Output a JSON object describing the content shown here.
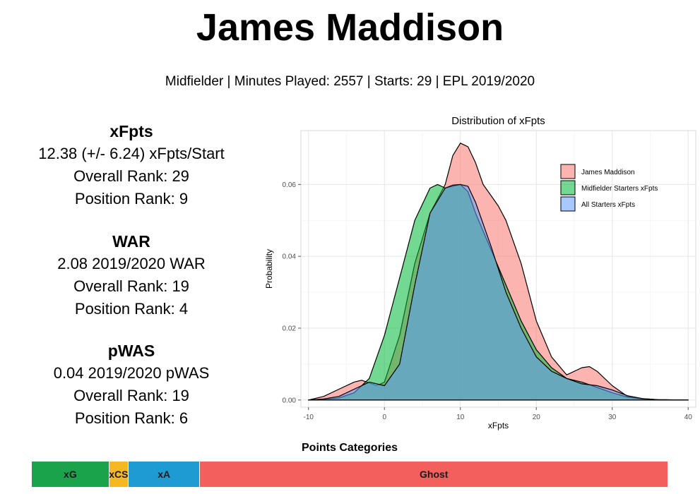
{
  "player": {
    "name": "James Maddison",
    "subtitle": "Midfielder | Minutes Played: 2557 | Starts: 29 | EPL 2019/2020"
  },
  "stats": [
    {
      "header": "xFpts",
      "lines": [
        "12.38 (+/- 6.24) xFpts/Start",
        "Overall Rank: 29",
        "Position Rank: 9"
      ]
    },
    {
      "header": "WAR",
      "lines": [
        "2.08 2019/2020 WAR",
        "Overall Rank: 19",
        "Position Rank: 4"
      ]
    },
    {
      "header": "pWAS",
      "lines": [
        "0.04 2019/2020 pWAS",
        "Overall Rank: 19",
        "Position Rank: 6"
      ]
    }
  ],
  "points_categories": {
    "title": "Points Categories",
    "segments": [
      {
        "label": "xG",
        "share": 0.122,
        "color": "#1aa34a"
      },
      {
        "label": "xCS",
        "share": 0.03,
        "color": "#f5b820"
      },
      {
        "label": "xA",
        "share": 0.113,
        "color": "#1f9bd3"
      },
      {
        "label": "Ghost",
        "share": 0.735,
        "color": "#f25f5c"
      }
    ]
  },
  "chart_data": {
    "type": "area",
    "title": "Distribution of xFpts",
    "xlabel": "xFpts",
    "ylabel": "Probability",
    "xlim": [
      -11,
      41
    ],
    "ylim": [
      -0.002,
      0.075
    ],
    "xticks": [
      -10,
      0,
      10,
      20,
      30,
      40
    ],
    "yticks": [
      0.0,
      0.02,
      0.04,
      0.06
    ],
    "ytick_labels": [
      "0.00",
      "0.02",
      "0.04",
      "0.06"
    ],
    "grid": true,
    "legend_position": "top-right",
    "series": [
      {
        "name": "James Maddison",
        "color": "#f8766d",
        "x": [
          -10,
          -8,
          -6,
          -4,
          -3,
          -1,
          0,
          2,
          4,
          6,
          8,
          9,
          10,
          11,
          12,
          13,
          14,
          15,
          16,
          18,
          20,
          22,
          24,
          26,
          27,
          28,
          30,
          32,
          34,
          36,
          40
        ],
        "y": [
          0.0,
          0.001,
          0.003,
          0.005,
          0.0055,
          0.004,
          0.005,
          0.018,
          0.038,
          0.052,
          0.06,
          0.068,
          0.0715,
          0.0705,
          0.066,
          0.06,
          0.057,
          0.054,
          0.05,
          0.038,
          0.022,
          0.012,
          0.007,
          0.009,
          0.0093,
          0.008,
          0.004,
          0.001,
          0.0004,
          0.0001,
          0.0
        ]
      },
      {
        "name": "Midfielder Starters xFpts",
        "color": "#00ba38",
        "x": [
          -10,
          -8,
          -6,
          -4,
          -2,
          0,
          1,
          2,
          4,
          6,
          7,
          8,
          9,
          10,
          11,
          12,
          14,
          16,
          18,
          20,
          22,
          24,
          26,
          28,
          30,
          32,
          34,
          36,
          40
        ],
        "y": [
          0.0,
          0.0002,
          0.0006,
          0.002,
          0.006,
          0.018,
          0.026,
          0.034,
          0.05,
          0.059,
          0.06,
          0.059,
          0.0595,
          0.06,
          0.058,
          0.052,
          0.042,
          0.032,
          0.022,
          0.014,
          0.009,
          0.006,
          0.005,
          0.0035,
          0.002,
          0.0008,
          0.0003,
          0.0001,
          0.0
        ]
      },
      {
        "name": "All Starters xFpts",
        "color": "#619cff",
        "x": [
          -10,
          -8,
          -6,
          -4,
          -2,
          0,
          2,
          4,
          6,
          8,
          9,
          10,
          11,
          12,
          14,
          16,
          18,
          20,
          22,
          24,
          26,
          28,
          30,
          32,
          34,
          36,
          40
        ],
        "y": [
          0.0,
          0.0003,
          0.001,
          0.003,
          0.005,
          0.004,
          0.01,
          0.032,
          0.052,
          0.059,
          0.0598,
          0.06,
          0.0595,
          0.055,
          0.043,
          0.03,
          0.02,
          0.012,
          0.008,
          0.006,
          0.0045,
          0.004,
          0.0028,
          0.0012,
          0.0004,
          0.0001,
          0.0
        ]
      }
    ]
  }
}
